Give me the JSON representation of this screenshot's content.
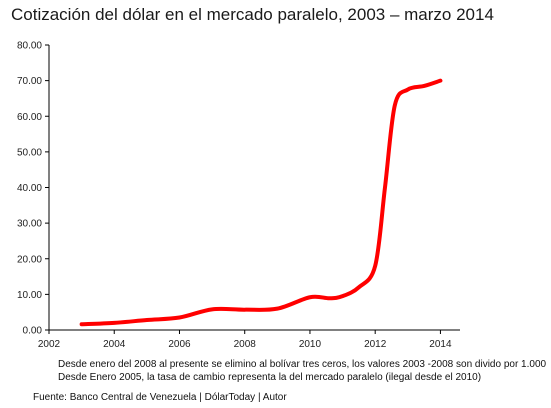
{
  "chart_data": {
    "type": "line",
    "title": "Cotización del dólar en el mercado paralelo, 2003 – marzo 2014",
    "xlabel": "",
    "ylabel": "",
    "xlim": [
      2002,
      2014.6
    ],
    "ylim": [
      0,
      80
    ],
    "x_ticks": [
      "2002",
      "2004",
      "2006",
      "2008",
      "2010",
      "2012",
      "2014"
    ],
    "y_ticks": [
      "0.00",
      "10.00",
      "20.00",
      "30.00",
      "40.00",
      "50.00",
      "60.00",
      "70.00",
      "80.00"
    ],
    "grid": false,
    "legend": "none",
    "series": [
      {
        "color": "#ff0000",
        "x": [
          2003.0,
          2004.0,
          2005.0,
          2006.0,
          2007.0,
          2008.0,
          2009.0,
          2010.0,
          2010.6,
          2011.0,
          2011.5,
          2012.0,
          2012.3,
          2012.6,
          2013.0,
          2013.5,
          2014.0
        ],
        "y": [
          1.6,
          2.0,
          2.8,
          3.5,
          5.8,
          5.7,
          6.0,
          9.2,
          8.9,
          9.5,
          12.0,
          18.0,
          40.0,
          63.0,
          67.5,
          68.5,
          70.0
        ]
      }
    ]
  },
  "notes": {
    "line1": "Desde enero del 2008 al presente  se elimino al bolívar tres ceros, los valores 2003 -2008 son divido por 1.000",
    "line2": "Desde Enero 2005, la tasa de cambio representa la del mercado paralelo (ilegal desde el 2010)"
  },
  "source": "Fuente: Banco Central de Venezuela | DólarToday   |  Autor"
}
